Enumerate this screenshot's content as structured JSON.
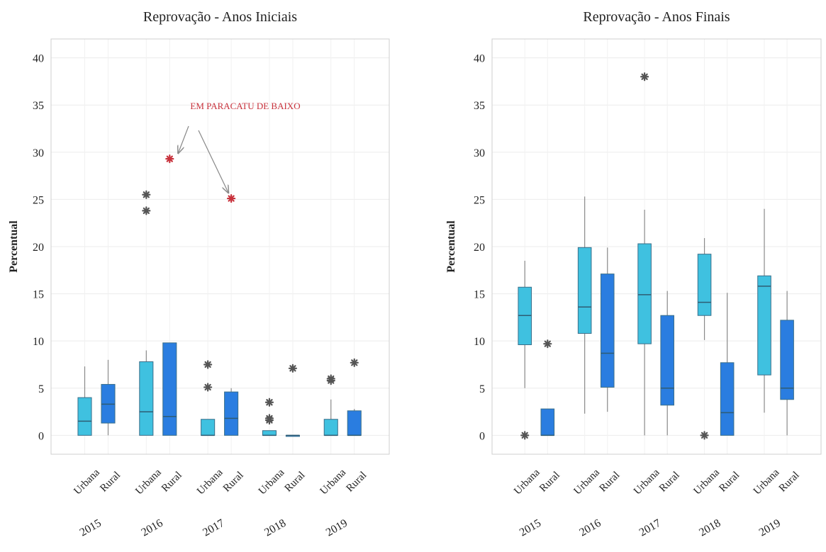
{
  "colors": {
    "urbana": "#3fc1e0",
    "rural": "#2a7de0",
    "highlight": "#c8323c",
    "outlier": "#555555"
  },
  "chart_data": [
    {
      "type": "box",
      "title": "Reprovação - Anos Iniciais",
      "ylabel": "Percentual",
      "ylim": [
        -2,
        42
      ],
      "yticks": [
        0,
        5,
        10,
        15,
        20,
        25,
        30,
        35,
        40
      ],
      "annotation": "EM PARACATU DE BAIXO",
      "groups": [
        {
          "year": "2015",
          "boxes": [
            {
              "category": "Urbana",
              "min": 0,
              "q1": 0,
              "median": 1.5,
              "q3": 4,
              "max": 7.3,
              "outliers": []
            },
            {
              "category": "Rural",
              "min": 0,
              "q1": 1.3,
              "median": 3.3,
              "q3": 5.4,
              "max": 8,
              "outliers": []
            }
          ]
        },
        {
          "year": "2016",
          "boxes": [
            {
              "category": "Urbana",
              "min": 0,
              "q1": 0,
              "median": 2.5,
              "q3": 7.8,
              "max": 9,
              "outliers": [
                25.5,
                23.8
              ]
            },
            {
              "category": "Rural",
              "min": 0,
              "q1": 0,
              "median": 2,
              "q3": 9.8,
              "max": 9.8,
              "outliers": [
                29.3
              ],
              "highlight": [
                29.3
              ]
            }
          ]
        },
        {
          "year": "2017",
          "boxes": [
            {
              "category": "Urbana",
              "min": 0,
              "q1": 0,
              "median": 0,
              "q3": 1.7,
              "max": 1.7,
              "outliers": [
                7.5,
                5.1
              ]
            },
            {
              "category": "Rural",
              "min": 0,
              "q1": 0,
              "median": 1.8,
              "q3": 4.6,
              "max": 5,
              "outliers": [
                25.1
              ],
              "highlight": [
                25.1
              ]
            }
          ]
        },
        {
          "year": "2018",
          "boxes": [
            {
              "category": "Urbana",
              "min": 0,
              "q1": 0,
              "median": 0,
              "q3": 0.5,
              "max": 0.5,
              "outliers": [
                3.5,
                1.8,
                1.6
              ]
            },
            {
              "category": "Rural",
              "min": 0,
              "q1": 0,
              "median": 0,
              "q3": 0,
              "max": 0,
              "outliers": [
                7.1
              ]
            }
          ]
        },
        {
          "year": "2019",
          "boxes": [
            {
              "category": "Urbana",
              "min": 0,
              "q1": 0,
              "median": 0,
              "q3": 1.7,
              "max": 3.8,
              "outliers": [
                5.8,
                6.0
              ]
            },
            {
              "category": "Rural",
              "min": 0,
              "q1": 0,
              "median": 0,
              "q3": 2.6,
              "max": 2.8,
              "outliers": [
                7.7
              ]
            }
          ]
        }
      ]
    },
    {
      "type": "box",
      "title": "Reprovação - Anos Finais",
      "ylabel": "Percentual",
      "ylim": [
        -2,
        42
      ],
      "yticks": [
        0,
        5,
        10,
        15,
        20,
        25,
        30,
        35,
        40
      ],
      "groups": [
        {
          "year": "2015",
          "boxes": [
            {
              "category": "Urbana",
              "min": 5,
              "q1": 9.6,
              "median": 12.7,
              "q3": 15.7,
              "max": 18.5,
              "outliers": [
                0
              ]
            },
            {
              "category": "Rural",
              "min": 0,
              "q1": 0,
              "median": 0,
              "q3": 2.8,
              "max": 2.8,
              "outliers": [
                9.7
              ]
            }
          ]
        },
        {
          "year": "2016",
          "boxes": [
            {
              "category": "Urbana",
              "min": 2.3,
              "q1": 10.8,
              "median": 13.6,
              "q3": 19.9,
              "max": 25.3,
              "outliers": []
            },
            {
              "category": "Rural",
              "min": 2.5,
              "q1": 5.1,
              "median": 8.7,
              "q3": 17.1,
              "max": 19.9,
              "outliers": []
            }
          ]
        },
        {
          "year": "2017",
          "boxes": [
            {
              "category": "Urbana",
              "min": 0,
              "q1": 9.7,
              "median": 14.9,
              "q3": 20.3,
              "max": 23.9,
              "outliers": [
                38
              ]
            },
            {
              "category": "Rural",
              "min": 0,
              "q1": 3.2,
              "median": 5,
              "q3": 12.7,
              "max": 15.3,
              "outliers": []
            }
          ]
        },
        {
          "year": "2018",
          "boxes": [
            {
              "category": "Urbana",
              "min": 10.1,
              "q1": 12.7,
              "median": 14.1,
              "q3": 19.2,
              "max": 20.9,
              "outliers": [
                0
              ]
            },
            {
              "category": "Rural",
              "min": 0,
              "q1": 0,
              "median": 2.4,
              "q3": 7.7,
              "max": 15.1,
              "outliers": []
            }
          ]
        },
        {
          "year": "2019",
          "boxes": [
            {
              "category": "Urbana",
              "min": 2.4,
              "q1": 6.4,
              "median": 15.8,
              "q3": 16.9,
              "max": 24,
              "outliers": []
            },
            {
              "category": "Rural",
              "min": 0,
              "q1": 3.8,
              "median": 5,
              "q3": 12.2,
              "max": 15.3,
              "outliers": []
            }
          ]
        }
      ]
    }
  ]
}
